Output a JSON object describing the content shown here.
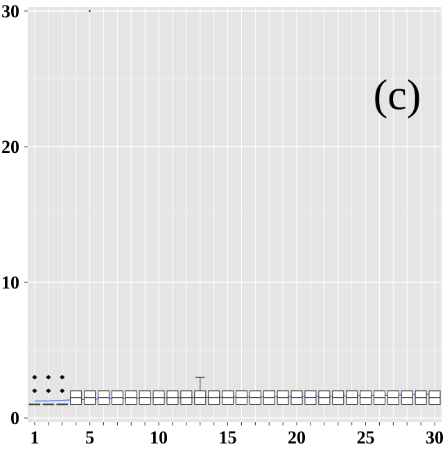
{
  "chart_data": {
    "type": "boxplot",
    "panel_label": "(c)",
    "xlabel": "",
    "ylabel": "",
    "xlim": [
      0.5,
      30.5
    ],
    "ylim": [
      -0.3,
      30.3
    ],
    "x_ticks": [
      1,
      5,
      10,
      15,
      20,
      25,
      30
    ],
    "y_ticks": [
      0,
      10,
      20,
      30
    ],
    "grid": true,
    "boxes": [
      {
        "x": 1,
        "q1": 1.0,
        "median": 1.0,
        "q3": 1.0,
        "whisker_low": 1.0,
        "whisker_high": 1.0,
        "outliers": [
          2.0,
          3.0
        ]
      },
      {
        "x": 2,
        "q1": 1.0,
        "median": 1.0,
        "q3": 1.0,
        "whisker_low": 1.0,
        "whisker_high": 1.0,
        "outliers": [
          2.0,
          3.0
        ]
      },
      {
        "x": 3,
        "q1": 1.0,
        "median": 1.0,
        "q3": 1.0,
        "whisker_low": 1.0,
        "whisker_high": 1.0,
        "outliers": [
          2.0,
          3.0
        ]
      },
      {
        "x": 4,
        "q1": 1.0,
        "median": 1.5,
        "q3": 2.0,
        "whisker_low": 1.0,
        "whisker_high": 2.0,
        "outliers": []
      },
      {
        "x": 5,
        "q1": 1.0,
        "median": 1.5,
        "q3": 2.0,
        "whisker_low": 1.0,
        "whisker_high": 2.0,
        "outliers": [
          30.0
        ]
      },
      {
        "x": 6,
        "q1": 1.0,
        "median": 1.5,
        "q3": 2.0,
        "whisker_low": 1.0,
        "whisker_high": 2.0,
        "outliers": []
      },
      {
        "x": 7,
        "q1": 1.0,
        "median": 1.5,
        "q3": 2.0,
        "whisker_low": 1.0,
        "whisker_high": 2.0,
        "outliers": []
      },
      {
        "x": 8,
        "q1": 1.0,
        "median": 1.5,
        "q3": 2.0,
        "whisker_low": 1.0,
        "whisker_high": 2.0,
        "outliers": []
      },
      {
        "x": 9,
        "q1": 1.0,
        "median": 1.5,
        "q3": 2.0,
        "whisker_low": 1.0,
        "whisker_high": 2.0,
        "outliers": []
      },
      {
        "x": 10,
        "q1": 1.0,
        "median": 1.5,
        "q3": 2.0,
        "whisker_low": 1.0,
        "whisker_high": 2.0,
        "outliers": []
      },
      {
        "x": 11,
        "q1": 1.0,
        "median": 1.5,
        "q3": 2.0,
        "whisker_low": 1.0,
        "whisker_high": 2.0,
        "outliers": []
      },
      {
        "x": 12,
        "q1": 1.0,
        "median": 1.5,
        "q3": 2.0,
        "whisker_low": 1.0,
        "whisker_high": 2.0,
        "outliers": []
      },
      {
        "x": 13,
        "q1": 1.0,
        "median": 1.5,
        "q3": 2.0,
        "whisker_low": 1.0,
        "whisker_high": 3.0,
        "outliers": []
      },
      {
        "x": 14,
        "q1": 1.0,
        "median": 1.5,
        "q3": 2.0,
        "whisker_low": 1.0,
        "whisker_high": 2.0,
        "outliers": []
      },
      {
        "x": 15,
        "q1": 1.0,
        "median": 1.5,
        "q3": 2.0,
        "whisker_low": 1.0,
        "whisker_high": 2.0,
        "outliers": []
      },
      {
        "x": 16,
        "q1": 1.0,
        "median": 1.5,
        "q3": 2.0,
        "whisker_low": 1.0,
        "whisker_high": 2.0,
        "outliers": []
      },
      {
        "x": 17,
        "q1": 1.0,
        "median": 1.5,
        "q3": 2.0,
        "whisker_low": 1.0,
        "whisker_high": 2.0,
        "outliers": []
      },
      {
        "x": 18,
        "q1": 1.0,
        "median": 1.5,
        "q3": 2.0,
        "whisker_low": 1.0,
        "whisker_high": 2.0,
        "outliers": []
      },
      {
        "x": 19,
        "q1": 1.0,
        "median": 1.5,
        "q3": 2.0,
        "whisker_low": 1.0,
        "whisker_high": 2.0,
        "outliers": []
      },
      {
        "x": 20,
        "q1": 1.0,
        "median": 1.5,
        "q3": 2.0,
        "whisker_low": 1.0,
        "whisker_high": 2.0,
        "outliers": []
      },
      {
        "x": 21,
        "q1": 1.0,
        "median": 1.5,
        "q3": 2.0,
        "whisker_low": 1.0,
        "whisker_high": 2.0,
        "outliers": []
      },
      {
        "x": 22,
        "q1": 1.0,
        "median": 1.5,
        "q3": 2.0,
        "whisker_low": 1.0,
        "whisker_high": 2.0,
        "outliers": []
      },
      {
        "x": 23,
        "q1": 1.0,
        "median": 1.5,
        "q3": 2.0,
        "whisker_low": 1.0,
        "whisker_high": 2.0,
        "outliers": []
      },
      {
        "x": 24,
        "q1": 1.0,
        "median": 1.5,
        "q3": 2.0,
        "whisker_low": 1.0,
        "whisker_high": 2.0,
        "outliers": []
      },
      {
        "x": 25,
        "q1": 1.0,
        "median": 1.5,
        "q3": 2.0,
        "whisker_low": 1.0,
        "whisker_high": 2.0,
        "outliers": []
      },
      {
        "x": 26,
        "q1": 1.0,
        "median": 1.5,
        "q3": 2.0,
        "whisker_low": 1.0,
        "whisker_high": 2.0,
        "outliers": []
      },
      {
        "x": 27,
        "q1": 1.0,
        "median": 1.5,
        "q3": 2.0,
        "whisker_low": 1.0,
        "whisker_high": 2.0,
        "outliers": []
      },
      {
        "x": 28,
        "q1": 1.0,
        "median": 1.5,
        "q3": 2.0,
        "whisker_low": 1.0,
        "whisker_high": 2.0,
        "outliers": []
      },
      {
        "x": 29,
        "q1": 1.0,
        "median": 1.5,
        "q3": 2.0,
        "whisker_low": 1.0,
        "whisker_high": 2.0,
        "outliers": []
      },
      {
        "x": 30,
        "q1": 1.0,
        "median": 1.5,
        "q3": 2.0,
        "whisker_low": 1.0,
        "whisker_high": 2.0,
        "outliers": []
      }
    ],
    "trend_line": {
      "color": "#3366ff",
      "x": [
        1,
        2,
        3,
        4,
        5,
        6,
        8,
        10,
        12,
        14,
        16,
        18,
        20,
        22,
        24,
        26,
        28,
        30
      ],
      "y": [
        1.25,
        1.25,
        1.3,
        1.35,
        1.38,
        1.42,
        1.45,
        1.48,
        1.5,
        1.52,
        1.54,
        1.56,
        1.58,
        1.6,
        1.63,
        1.66,
        1.7,
        1.75
      ]
    },
    "colors": {
      "panel_background": "#e5e5e5",
      "grid_major": "#ffffff",
      "grid_minor": "#f2f2f2",
      "box_fill": "#ffffff",
      "box_stroke": "#333333"
    }
  }
}
